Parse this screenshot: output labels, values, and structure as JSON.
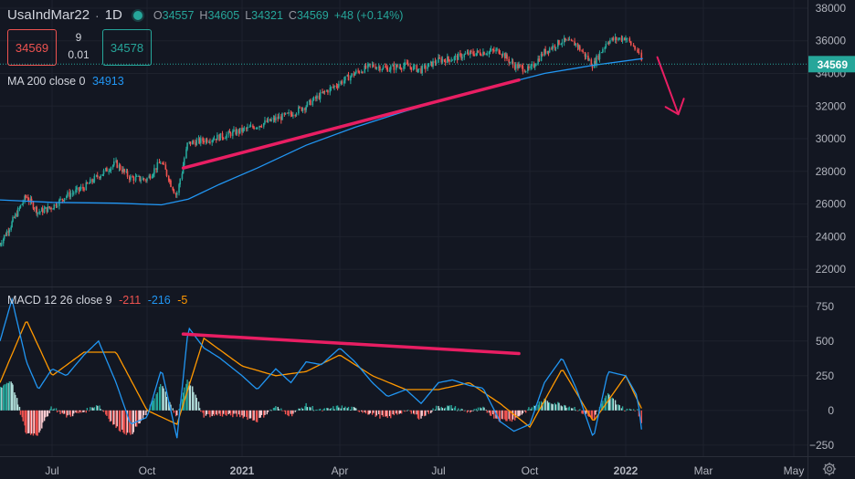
{
  "header": {
    "symbol": "UsaIndMar22",
    "separator": "·",
    "timeframe": "1D",
    "status_color": "#26a69a",
    "ohlc": {
      "open_label": "O",
      "open": "34557",
      "high_label": "H",
      "high": "34605",
      "low_label": "L",
      "low": "34321",
      "close_label": "C",
      "close": "34569",
      "change": "+48 (+0.14%)"
    }
  },
  "trade": {
    "sell_price": "34569",
    "spread_top": "9",
    "spread_bottom": "0.01",
    "buy_price": "34578"
  },
  "ma_legend": {
    "label": "MA 200 close 0",
    "value": "34913"
  },
  "macd_legend": {
    "label": "MACD 12 26 close 9",
    "hist": "-211",
    "macd": "-216",
    "signal": "-5"
  },
  "price_axis": {
    "ticks": [
      "38000",
      "36000",
      "34000",
      "32000",
      "30000",
      "28000",
      "26000",
      "24000",
      "22000"
    ],
    "last_price": "34569"
  },
  "macd_axis": {
    "ticks": [
      "750",
      "500",
      "250",
      "0",
      "−250"
    ]
  },
  "time_axis": {
    "ticks": [
      "Jul",
      "Oct",
      "2021",
      "Apr",
      "Jul",
      "Oct",
      "2022",
      "Mar",
      "May"
    ]
  },
  "colors": {
    "background": "#131722",
    "up": "#26a69a",
    "down": "#ef5350",
    "ma": "#2196f3",
    "macd_line": "#2196f3",
    "signal_line": "#ff9800",
    "trendline": "#e91e63",
    "axis_text": "#b2b5be"
  },
  "icons": {
    "settings": "gear-icon",
    "projection": "arrow-down-right-icon"
  },
  "chart_data": [
    {
      "type": "line",
      "subtype": "candlestick",
      "series": [
        {
          "name": "UsaIndMar22",
          "x": [
            "2020-05-01",
            "2020-05-15",
            "2020-06-01",
            "2020-06-15",
            "2020-07-01",
            "2020-07-15",
            "2020-08-01",
            "2020-08-15",
            "2020-09-01",
            "2020-09-15",
            "2020-10-01",
            "2020-10-15",
            "2020-10-30",
            "2020-11-10",
            "2020-11-25",
            "2020-12-10",
            "2021-01-01",
            "2021-01-15",
            "2021-02-01",
            "2021-02-15",
            "2021-03-01",
            "2021-03-15",
            "2021-04-01",
            "2021-04-15",
            "2021-05-01",
            "2021-05-15",
            "2021-06-01",
            "2021-06-15",
            "2021-07-01",
            "2021-07-15",
            "2021-08-01",
            "2021-08-15",
            "2021-09-01",
            "2021-09-15",
            "2021-10-01",
            "2021-10-15",
            "2021-11-01",
            "2021-11-15",
            "2021-12-01",
            "2021-12-15",
            "2022-01-01",
            "2022-01-10",
            "2022-01-14"
          ],
          "values": [
            23500,
            24800,
            26500,
            25500,
            25800,
            26500,
            27000,
            27700,
            28500,
            27600,
            27500,
            28600,
            26500,
            29700,
            29900,
            30100,
            30500,
            30800,
            31200,
            31500,
            32000,
            32700,
            33400,
            34000,
            34500,
            34300,
            34500,
            34200,
            34800,
            34900,
            35200,
            35300,
            35400,
            34500,
            34200,
            35300,
            36000,
            35800,
            34500,
            36000,
            36200,
            35400,
            34569
          ]
        },
        {
          "name": "MA 200 close 0",
          "x": [
            "2020-05-01",
            "2020-07-01",
            "2020-09-01",
            "2020-10-15",
            "2020-11-10",
            "2020-12-10",
            "2021-01-15",
            "2021-03-01",
            "2021-04-15",
            "2021-06-01",
            "2021-07-15",
            "2021-09-01",
            "2021-10-15",
            "2021-12-01",
            "2022-01-14"
          ],
          "values": [
            26250,
            26100,
            26050,
            25950,
            26300,
            27200,
            28200,
            29600,
            30700,
            31700,
            32500,
            33300,
            34000,
            34500,
            34913
          ]
        }
      ],
      "annotations": [
        {
          "type": "trendline",
          "from": {
            "x": "2020-11-05",
            "y": 28200
          },
          "to": {
            "x": "2021-09-20",
            "y": 33600
          }
        },
        {
          "type": "arrow",
          "direction": "down",
          "from": {
            "x": "2022-01-25",
            "y": 35000
          },
          "to": {
            "x": "2022-02-10",
            "y": 31500
          }
        }
      ],
      "yaxis": {
        "ticks": [
          38000,
          36000,
          34000,
          32000,
          30000,
          28000,
          26000,
          24000,
          22000
        ],
        "range": [
          21000,
          38500
        ]
      },
      "last_price": 34569
    },
    {
      "type": "line",
      "subtype": "macd",
      "series": [
        {
          "name": "MACD",
          "x": [
            "2020-05-01",
            "2020-05-15",
            "2020-06-01",
            "2020-06-15",
            "2020-07-01",
            "2020-07-15",
            "2020-08-01",
            "2020-08-15",
            "2020-09-01",
            "2020-09-15",
            "2020-10-01",
            "2020-10-15",
            "2020-10-30",
            "2020-11-10",
            "2020-11-25",
            "2020-12-10",
            "2021-01-01",
            "2021-01-15",
            "2021-02-01",
            "2021-02-15",
            "2021-03-01",
            "2021-03-15",
            "2021-04-01",
            "2021-04-15",
            "2021-05-01",
            "2021-05-15",
            "2021-06-01",
            "2021-06-15",
            "2021-07-01",
            "2021-07-15",
            "2021-08-01",
            "2021-08-15",
            "2021-09-01",
            "2021-09-15",
            "2021-10-01",
            "2021-10-15",
            "2021-11-01",
            "2021-11-15",
            "2021-12-01",
            "2021-12-15",
            "2022-01-01",
            "2022-01-10",
            "2022-01-14"
          ],
          "values": [
            500,
            800,
            350,
            150,
            300,
            250,
            400,
            500,
            200,
            -100,
            -50,
            300,
            -200,
            600,
            450,
            380,
            250,
            150,
            300,
            200,
            350,
            330,
            450,
            350,
            200,
            100,
            150,
            50,
            200,
            220,
            180,
            160,
            -80,
            -150,
            -100,
            200,
            380,
            150,
            -200,
            280,
            250,
            100,
            -216
          ]
        },
        {
          "name": "Signal",
          "x": [
            "2020-05-01",
            "2020-06-01",
            "2020-07-01",
            "2020-08-01",
            "2020-09-01",
            "2020-10-01",
            "2020-10-30",
            "2020-11-25",
            "2021-01-01",
            "2021-02-01",
            "2021-03-01",
            "2021-04-01",
            "2021-05-01",
            "2021-06-01",
            "2021-07-01",
            "2021-08-01",
            "2021-09-01",
            "2021-10-01",
            "2021-11-01",
            "2021-12-01",
            "2022-01-01",
            "2022-01-14"
          ],
          "values": [
            200,
            650,
            250,
            420,
            420,
            0,
            -100,
            520,
            320,
            250,
            280,
            400,
            250,
            150,
            150,
            200,
            50,
            -120,
            300,
            -80,
            250,
            -5
          ]
        }
      ],
      "annotations": [
        {
          "type": "trendline",
          "from": {
            "x": "2020-11-05",
            "y": 550
          },
          "to": {
            "x": "2021-09-20",
            "y": 410
          }
        }
      ],
      "yaxis": {
        "ticks": [
          750,
          500,
          250,
          0,
          -250
        ],
        "range": [
          -330,
          880
        ]
      }
    }
  ]
}
